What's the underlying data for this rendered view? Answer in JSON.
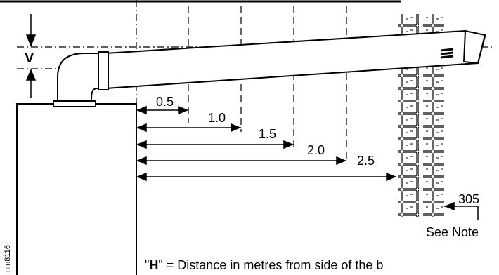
{
  "dimensions": {
    "v_label": "V",
    "h_values": [
      "0.5",
      "1.0",
      "1.5",
      "2.0",
      "2.5"
    ],
    "wall_offset": "305",
    "see_note": "See  Note"
  },
  "caption": {
    "h_symbol": "H",
    "text_before": "\"",
    "text_after": "\" = Distance in metres from side of the b"
  },
  "figure_code": "nm8116"
}
